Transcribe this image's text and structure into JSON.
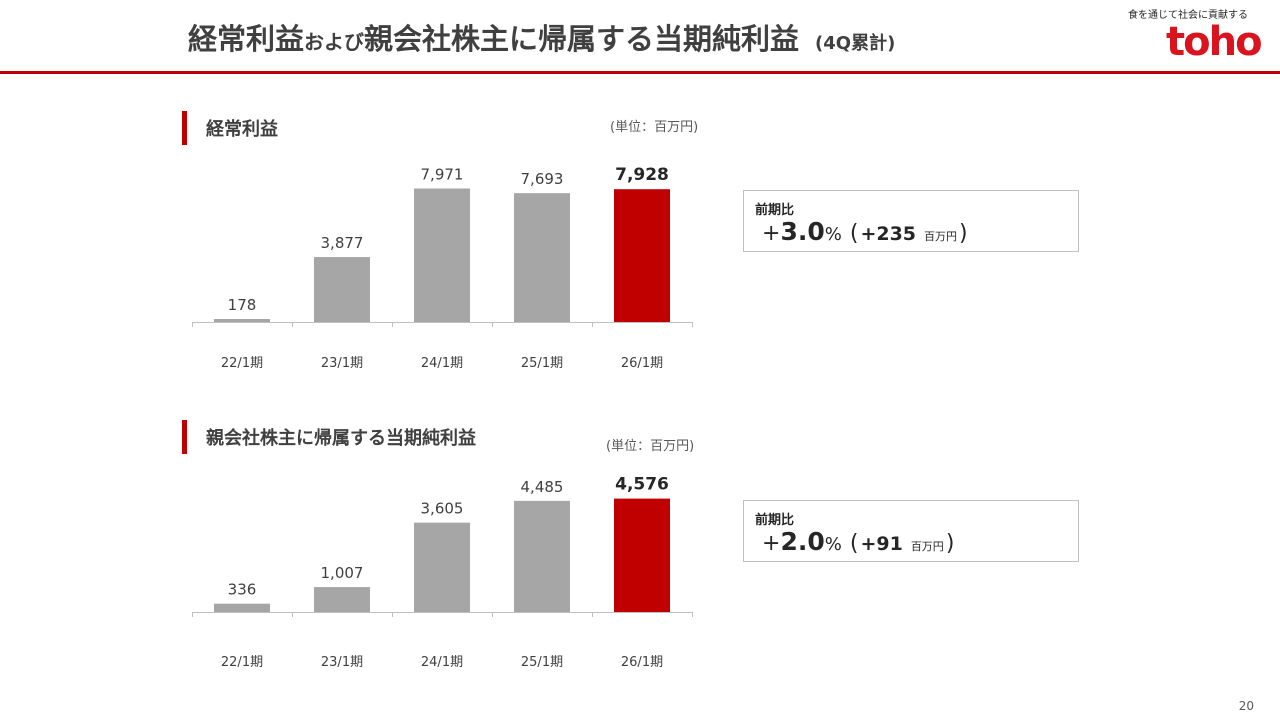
{
  "header": {
    "title_part1": "経常利益",
    "title_part2": "および",
    "title_part3": "親会社株主に帰属する当期純利益",
    "title_part4": "(4Q累計)",
    "tagline": "食を通じて社会に貢献する",
    "logo_text": "toho"
  },
  "colors": {
    "accent": "#c00000",
    "bar": "#a6a6a6",
    "logo": "#d9141e"
  },
  "sections": [
    {
      "label": "経常利益",
      "unit": "(単位：百万円)",
      "comparison": {
        "label": "前期比",
        "sign": "+",
        "pct_number": "3.0",
        "pct_symbol": "%",
        "paren_open": "(",
        "abs_value": "+235",
        "abs_unit": "百万円",
        "paren_close": ")"
      }
    },
    {
      "label": "親会社株主に帰属する当期純利益",
      "unit": "(単位：百万円)",
      "comparison": {
        "label": "前期比",
        "sign": "+",
        "pct_number": "2.0",
        "pct_symbol": "%",
        "paren_open": "(",
        "abs_value": "+91",
        "abs_unit": "百万円",
        "paren_close": ")"
      }
    }
  ],
  "chart_data": [
    {
      "type": "bar",
      "title": "経常利益",
      "categories": [
        "22/1期",
        "23/1期",
        "24/1期",
        "25/1期",
        "26/1期"
      ],
      "values": [
        178,
        3877,
        7971,
        7693,
        7928
      ],
      "value_labels": [
        "178",
        "3,877",
        "7,971",
        "7,693",
        "7,928"
      ],
      "highlight_index": 4,
      "ylim": [
        0,
        8000
      ]
    },
    {
      "type": "bar",
      "title": "親会社株主に帰属する当期純利益",
      "categories": [
        "22/1期",
        "23/1期",
        "24/1期",
        "25/1期",
        "26/1期"
      ],
      "values": [
        336,
        1007,
        3605,
        4485,
        4576
      ],
      "value_labels": [
        "336",
        "1,007",
        "3,605",
        "4,485",
        "4,576"
      ],
      "highlight_index": 4,
      "ylim": [
        0,
        4600
      ]
    }
  ],
  "page_number": "20"
}
